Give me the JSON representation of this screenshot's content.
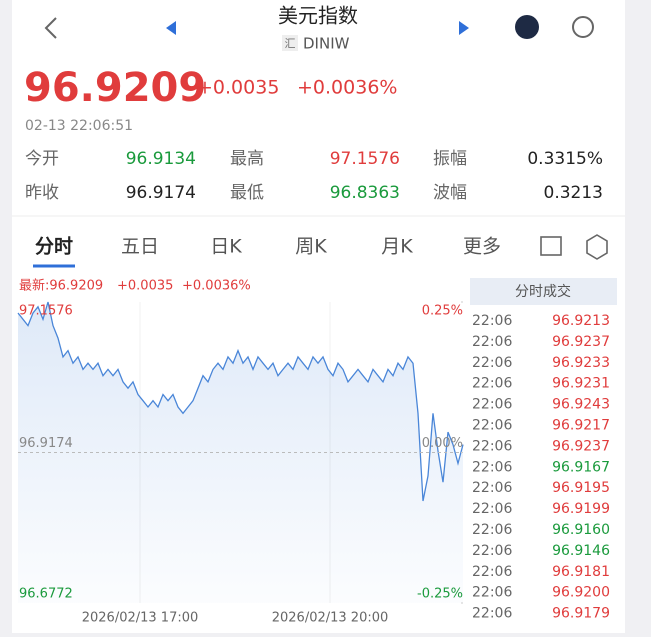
{
  "header": {
    "title": "美元指数",
    "badge": "汇",
    "code": "DINIW"
  },
  "quote": {
    "price": "96.9209",
    "change": "+0.0035",
    "pct": "+0.0036%",
    "time": "02-13 22:06:51"
  },
  "stats": [
    [
      {
        "label": "今开",
        "value": "96.9134",
        "color": "#1a9a3c"
      },
      {
        "label": "最高",
        "value": "97.1576",
        "color": "#e03c3c"
      },
      {
        "label": "振幅",
        "value": "0.3315%",
        "color": "#222222"
      }
    ],
    [
      {
        "label": "昨收",
        "value": "96.9174",
        "color": "#222222"
      },
      {
        "label": "最低",
        "value": "96.8363",
        "color": "#1a9a3c"
      },
      {
        "label": "波幅",
        "value": "0.3213",
        "color": "#222222"
      }
    ]
  ],
  "tabs": [
    "分时",
    "五日",
    "日K",
    "周K",
    "月K",
    "更多"
  ],
  "chart_data": {
    "type": "line",
    "latest": "最新:96.9209",
    "change": "+0.0035",
    "pct": "+0.0036%",
    "color": "#4a86d8",
    "values": [
      97.14,
      97.13,
      97.12,
      97.14,
      97.15,
      97.13,
      97.1576,
      97.12,
      97.1,
      97.07,
      97.08,
      97.06,
      97.07,
      97.05,
      97.06,
      97.05,
      97.06,
      97.04,
      97.05,
      97.04,
      97.05,
      97.03,
      97.02,
      97.03,
      97.01,
      97.0,
      96.99,
      97.0,
      96.99,
      97.01,
      97.0,
      97.01,
      96.99,
      96.98,
      96.99,
      97.0,
      97.02,
      97.04,
      97.03,
      97.05,
      97.06,
      97.05,
      97.07,
      97.06,
      97.08,
      97.06,
      97.07,
      97.05,
      97.07,
      97.06,
      97.05,
      97.06,
      97.04,
      97.05,
      97.06,
      97.05,
      97.07,
      97.06,
      97.05,
      97.07,
      97.06,
      97.07,
      97.05,
      97.04,
      97.06,
      97.05,
      97.03,
      97.04,
      97.05,
      97.04,
      97.03,
      97.05,
      97.04,
      97.03,
      97.05,
      97.04,
      97.06,
      97.05,
      97.07,
      97.06,
      96.98,
      96.84,
      96.88,
      96.98,
      96.92,
      96.87,
      96.95,
      96.93,
      96.9,
      96.93
    ],
    "ylim": [
      96.6772,
      97.1576
    ],
    "yticks": [
      97.1576,
      96.9174,
      96.6772
    ],
    "y2lim": [
      -0.25,
      0.25
    ],
    "y2ticks": [
      {
        "value": 0.25,
        "label": "0.25%"
      },
      {
        "value": 0,
        "label": "0.00%"
      },
      {
        "value": -0.25,
        "label": "-0.25%"
      }
    ],
    "xtick_labels": [
      "2026/02/13 17:00",
      "2026/02/13 20:00"
    ]
  },
  "trades": {
    "title": "分时成交",
    "rows": [
      {
        "time": "22:06",
        "price": "96.9213",
        "color": "#e03c3c"
      },
      {
        "time": "22:06",
        "price": "96.9237",
        "color": "#e03c3c"
      },
      {
        "time": "22:06",
        "price": "96.9233",
        "color": "#e03c3c"
      },
      {
        "time": "22:06",
        "price": "96.9231",
        "color": "#e03c3c"
      },
      {
        "time": "22:06",
        "price": "96.9243",
        "color": "#e03c3c"
      },
      {
        "time": "22:06",
        "price": "96.9217",
        "color": "#e03c3c"
      },
      {
        "time": "22:06",
        "price": "96.9237",
        "color": "#e03c3c"
      },
      {
        "time": "22:06",
        "price": "96.9167",
        "color": "#1a9a3c"
      },
      {
        "time": "22:06",
        "price": "96.9195",
        "color": "#e03c3c"
      },
      {
        "time": "22:06",
        "price": "96.9199",
        "color": "#e03c3c"
      },
      {
        "time": "22:06",
        "price": "96.9160",
        "color": "#1a9a3c"
      },
      {
        "time": "22:06",
        "price": "96.9146",
        "color": "#1a9a3c"
      },
      {
        "time": "22:06",
        "price": "96.9181",
        "color": "#e03c3c"
      },
      {
        "time": "22:06",
        "price": "96.9200",
        "color": "#e03c3c"
      },
      {
        "time": "22:06",
        "price": "96.9179",
        "color": "#e03c3c"
      }
    ]
  }
}
